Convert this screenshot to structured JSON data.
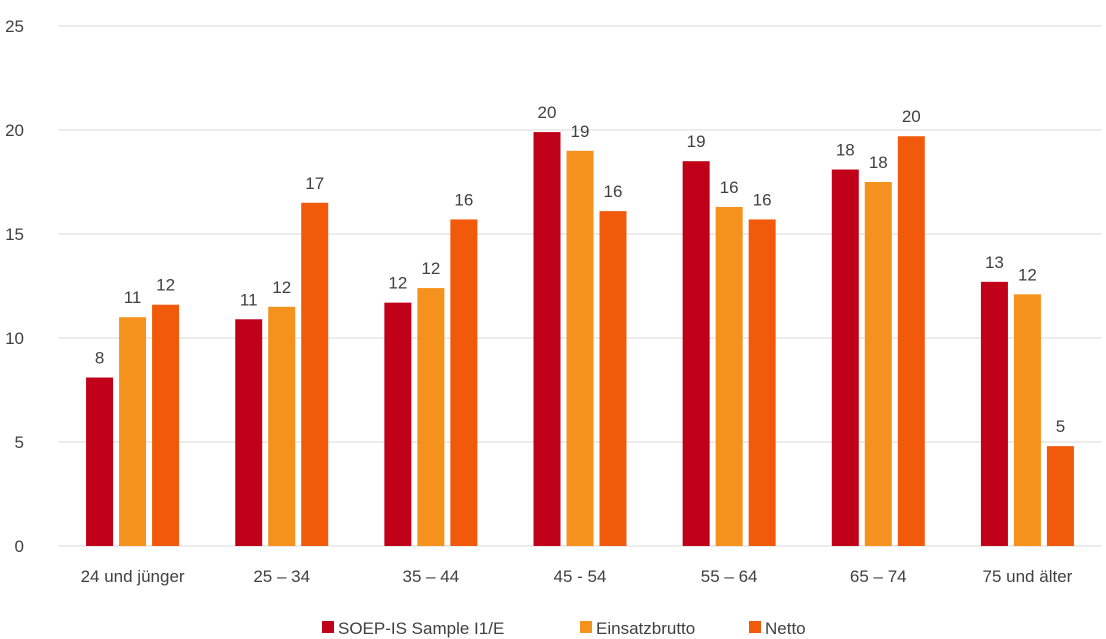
{
  "chart_data": {
    "type": "bar",
    "title": "",
    "xlabel": "",
    "ylabel": "",
    "ylim": [
      0,
      25
    ],
    "yticks": [
      0,
      5,
      10,
      15,
      20,
      25
    ],
    "grid": true,
    "legend_position": "bottom",
    "categories": [
      "24 und jünger",
      "25 – 34",
      "35 – 44",
      "45 - 54",
      "55 – 64",
      "65 – 74",
      "75 und älter"
    ],
    "series": [
      {
        "name": "SOEP-IS Sample I1/E",
        "color": "#c00018",
        "values": [
          8.1,
          10.9,
          11.7,
          19.9,
          18.5,
          18.1,
          12.7
        ],
        "labels": [
          "8",
          "11",
          "12",
          "20",
          "19",
          "18",
          "13"
        ]
      },
      {
        "name": "Einsatzbrutto",
        "color": "#f5921e",
        "values": [
          11.0,
          11.5,
          12.4,
          19.0,
          16.3,
          17.5,
          12.1
        ],
        "labels": [
          "11",
          "12",
          "12",
          "19",
          "16",
          "18",
          "12"
        ]
      },
      {
        "name": "Netto",
        "color": "#f05a0a",
        "values": [
          11.6,
          16.5,
          15.7,
          16.1,
          15.7,
          19.7,
          4.8
        ],
        "labels": [
          "12",
          "17",
          "16",
          "16",
          "16",
          "20",
          "5"
        ]
      }
    ]
  }
}
